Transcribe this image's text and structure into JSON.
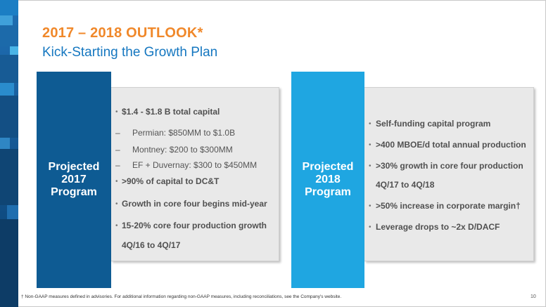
{
  "slide": {
    "title": "2017 – 2018 OUTLOOK*",
    "subtitle": "Kick-Starting the Growth Plan",
    "page_number": "10",
    "footnote": "† Non-GAAP measures defined in advisories. For additional information regarding non-GAAP measures, including reconciliations, see the Company's website."
  },
  "left_panel": {
    "label": [
      "Projected",
      "2017",
      "Program"
    ],
    "items": {
      "capital": "$1.4 - $1.8 B total capital",
      "permian": "Permian: $850MM to $1.0B",
      "montney": "Montney: $200 to $300MM",
      "duvernay": "EF + Duvernay: $300 to $450MM",
      "dct": ">90% of capital to DC&T",
      "growth": "Growth in core four begins mid-year",
      "production_1": "15-20% core four production growth",
      "production_2": "4Q/16 to 4Q/17"
    }
  },
  "right_panel": {
    "label": [
      "Projected",
      "2018",
      "Program"
    ],
    "items": {
      "self_funding": "Self-funding capital program",
      "mboe": ">400 MBOE/d total annual production",
      "growth_1": ">30% growth in core four production",
      "growth_2": "4Q/17 to 4Q/18",
      "margin": ">50% increase in corporate margin†",
      "leverage": "Leverage drops to ~2x D/DACF"
    }
  },
  "colors": {
    "title_orange": "#f0882a",
    "subtitle_blue": "#1577c0",
    "panel_dark_blue": "#0e5b93",
    "panel_light_blue": "#1fa6e1",
    "panel_grey": "#e9e9e9"
  }
}
